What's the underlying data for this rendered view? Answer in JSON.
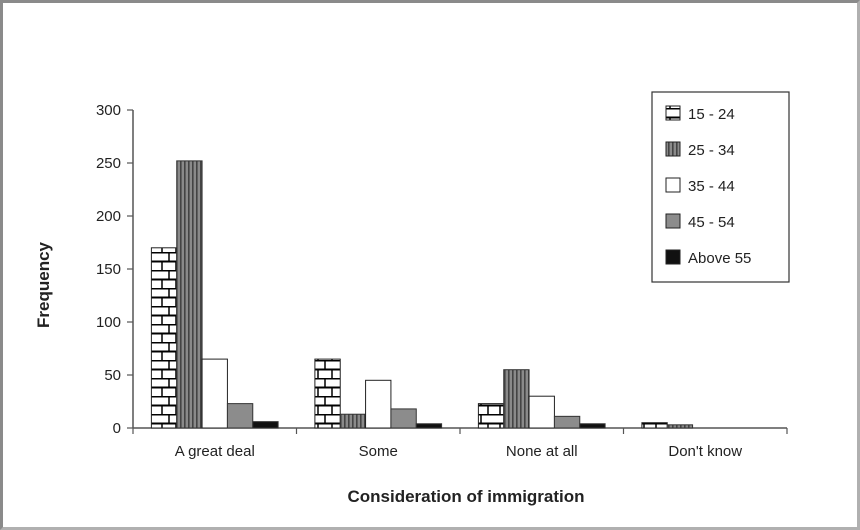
{
  "chart_data": {
    "type": "bar",
    "title": "",
    "xlabel": "Consideration of immigration",
    "ylabel": "Frequency",
    "ylim": [
      0,
      300
    ],
    "yticks": [
      "0",
      "50",
      "100",
      "150",
      "200",
      "250",
      "300"
    ],
    "categories": [
      "A great deal",
      "Some",
      "None at all",
      "Don't know"
    ],
    "series": [
      {
        "name": "15 - 24",
        "values": [
          170,
          65,
          23,
          5
        ],
        "pattern": "brick"
      },
      {
        "name": "25 - 34",
        "values": [
          252,
          13,
          55,
          3
        ],
        "pattern": "vertical-stripes"
      },
      {
        "name": "35 - 44",
        "values": [
          65,
          45,
          30,
          0
        ],
        "pattern": "white"
      },
      {
        "name": "45 - 54",
        "values": [
          23,
          18,
          11,
          0
        ],
        "pattern": "grey"
      },
      {
        "name": "Above 55",
        "values": [
          6,
          4,
          4,
          0
        ],
        "pattern": "black"
      }
    ],
    "legend_position": "top-right",
    "grid": false
  }
}
